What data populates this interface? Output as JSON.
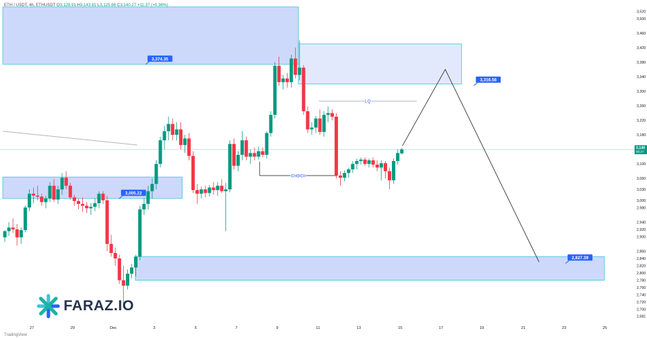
{
  "header": {
    "symbol": "ETH / USDT, 4h, ETHUSDT",
    "open_label": "O",
    "open": "3,128.91",
    "high_label": "H",
    "high": "3,143.81",
    "low_label": "L",
    "low": "3,125.86",
    "close_label": "C",
    "close": "3,140.27",
    "change": "+11.37 (+0.36%)"
  },
  "brand": {
    "name": "FARAZ.IO",
    "icon": "faraz-logo-icon"
  },
  "footer": {
    "tradingview": "TradingView"
  },
  "colors": {
    "up": "#089981",
    "down": "#f23645",
    "zone_fill": "#cdd9fb",
    "zone_border": "#3fc2d8",
    "label_bg": "#2962ff",
    "line": "#333333"
  },
  "chart_data": {
    "type": "candlestick",
    "x_tick_labels": [
      "27",
      "29",
      "Dec",
      "3",
      "5",
      "7",
      "9",
      "11",
      "13",
      "15",
      "17",
      "19",
      "21",
      "23",
      "25"
    ],
    "y_tick_labels": [
      "3,520",
      "3,500",
      "3,460",
      "3,420",
      "3,380",
      "3,340",
      "3,300",
      "3,260",
      "3,220",
      "3,180",
      "3,100",
      "3,060",
      "3,030",
      "3,000",
      "2,980",
      "2,940",
      "2,920",
      "2,900",
      "2,860",
      "2,840",
      "2,820",
      "2,800",
      "2,780",
      "2,760",
      "2,740",
      "2,720",
      "2,700",
      "2,681"
    ],
    "y_tick_values": [
      3520,
      3500,
      3460,
      3420,
      3380,
      3340,
      3300,
      3260,
      3220,
      3180,
      3100,
      3060,
      3030,
      3000,
      2980,
      2940,
      2920,
      2900,
      2860,
      2840,
      2820,
      2800,
      2780,
      2760,
      2740,
      2720,
      2700,
      2681
    ],
    "ylim": [
      2665,
      3532
    ],
    "last_price": {
      "label": "3,140",
      "sublabel": "00:27",
      "value": 3140
    },
    "levels": [
      {
        "label": "3,374.35",
        "value": 3374.35
      },
      {
        "label": "3,316.56",
        "value": 3316.56
      },
      {
        "label": "3,005.22",
        "value": 3005.22
      },
      {
        "label": "2,827.39",
        "value": 2827.39
      }
    ],
    "zones": [
      {
        "name": "upper-demand-zone",
        "from_day": 0,
        "to_day": 14.5,
        "low": 3374,
        "high": 3532
      },
      {
        "name": "supply-zone",
        "from_day": 14.5,
        "to_day": 22.5,
        "low": 3320,
        "high": 3430
      },
      {
        "name": "mid-zone",
        "from_day": 0,
        "to_day": 8.8,
        "low": 3005,
        "high": 3064
      },
      {
        "name": "lower-zone",
        "from_day": 6.5,
        "to_day": 29.5,
        "low": 2780,
        "high": 2845
      }
    ],
    "annotations": [
      {
        "text": "LQ",
        "value": 3273,
        "from_day": 15.5,
        "to_day": 20.3
      },
      {
        "text": "CHOCH",
        "value": 3068,
        "from_day": 12.6,
        "to_day": 16.4
      }
    ],
    "projection": [
      {
        "day": 19.6,
        "value": 3150
      },
      {
        "day": 21.7,
        "value": 3360
      },
      {
        "day": 26.3,
        "value": 2830
      }
    ],
    "trendline": [
      {
        "day": 0,
        "value": 3190
      },
      {
        "day": 6.6,
        "value": 3152
      }
    ],
    "candles": [
      [
        2898,
        2918,
        2885,
        2915
      ],
      [
        2915,
        2940,
        2902,
        2925
      ],
      [
        2925,
        2950,
        2910,
        2920
      ],
      [
        2920,
        2935,
        2875,
        2898
      ],
      [
        2898,
        2925,
        2880,
        2918
      ],
      [
        2918,
        2985,
        2912,
        2980
      ],
      [
        2980,
        3030,
        2970,
        3018
      ],
      [
        3018,
        3035,
        2992,
        3013
      ],
      [
        3013,
        3040,
        3000,
        3010
      ],
      [
        3010,
        3018,
        2985,
        2995
      ],
      [
        2995,
        3012,
        2978,
        3005
      ],
      [
        3005,
        3050,
        2995,
        3040
      ],
      [
        3040,
        3058,
        2995,
        3002
      ],
      [
        3002,
        3040,
        2990,
        3030
      ],
      [
        3030,
        3075,
        3015,
        3062
      ],
      [
        3062,
        3080,
        3030,
        3040
      ],
      [
        3040,
        3048,
        3002,
        3008
      ],
      [
        3008,
        3015,
        2985,
        2998
      ],
      [
        2998,
        3005,
        2975,
        2990
      ],
      [
        2990,
        3008,
        2968,
        2985
      ],
      [
        2985,
        2995,
        2965,
        2978
      ],
      [
        2978,
        2992,
        2960,
        2982
      ],
      [
        2982,
        3005,
        2970,
        2992
      ],
      [
        2992,
        3025,
        2978,
        3018
      ],
      [
        3018,
        3025,
        2990,
        3000
      ],
      [
        3000,
        3012,
        2860,
        2880
      ],
      [
        2880,
        2905,
        2845,
        2855
      ],
      [
        2855,
        2870,
        2820,
        2840
      ],
      [
        2840,
        2850,
        2770,
        2780
      ],
      [
        2780,
        2820,
        2710,
        2765
      ],
      [
        2765,
        2810,
        2755,
        2798
      ],
      [
        2798,
        2825,
        2785,
        2815
      ],
      [
        2815,
        2850,
        2790,
        2845
      ],
      [
        2845,
        2985,
        2835,
        2975
      ],
      [
        2975,
        3005,
        2960,
        2990
      ],
      [
        2990,
        3040,
        2975,
        3025
      ],
      [
        3025,
        3060,
        3005,
        3045
      ],
      [
        3045,
        3110,
        3030,
        3100
      ],
      [
        3100,
        3175,
        3090,
        3165
      ],
      [
        3165,
        3205,
        3140,
        3190
      ],
      [
        3190,
        3230,
        3165,
        3210
      ],
      [
        3210,
        3225,
        3165,
        3180
      ],
      [
        3180,
        3215,
        3165,
        3195
      ],
      [
        3195,
        3215,
        3140,
        3152
      ],
      [
        3152,
        3180,
        3130,
        3170
      ],
      [
        3170,
        3185,
        3110,
        3122
      ],
      [
        3122,
        3135,
        3020,
        3028
      ],
      [
        3028,
        3045,
        2990,
        3018
      ],
      [
        3018,
        3038,
        3005,
        3030
      ],
      [
        3030,
        3040,
        3008,
        3020
      ],
      [
        3020,
        3042,
        3010,
        3035
      ],
      [
        3035,
        3050,
        3015,
        3028
      ],
      [
        3028,
        3050,
        3012,
        3040
      ],
      [
        3040,
        3058,
        3020,
        3025
      ],
      [
        3025,
        3048,
        2915,
        3030
      ],
      [
        3030,
        3165,
        3022,
        3155
      ],
      [
        3155,
        3170,
        3085,
        3095
      ],
      [
        3095,
        3135,
        3080,
        3125
      ],
      [
        3125,
        3190,
        3110,
        3165
      ],
      [
        3165,
        3175,
        3110,
        3120
      ],
      [
        3120,
        3140,
        3100,
        3130
      ],
      [
        3130,
        3145,
        3110,
        3120
      ],
      [
        3120,
        3148,
        3112,
        3135
      ],
      [
        3135,
        3145,
        3118,
        3125
      ],
      [
        3125,
        3190,
        3115,
        3185
      ],
      [
        3185,
        3245,
        3175,
        3235
      ],
      [
        3235,
        3380,
        3225,
        3370
      ],
      [
        3370,
        3395,
        3315,
        3325
      ],
      [
        3325,
        3345,
        3305,
        3335
      ],
      [
        3335,
        3350,
        3310,
        3325
      ],
      [
        3325,
        3400,
        3310,
        3390
      ],
      [
        3390,
        3420,
        3335,
        3345
      ],
      [
        3345,
        3440,
        3330,
        3365
      ],
      [
        3365,
        3372,
        3235,
        3245
      ],
      [
        3245,
        3258,
        3185,
        3195
      ],
      [
        3195,
        3215,
        3180,
        3200
      ],
      [
        3200,
        3232,
        3185,
        3225
      ],
      [
        3225,
        3250,
        3180,
        3188
      ],
      [
        3188,
        3245,
        3175,
        3235
      ],
      [
        3235,
        3258,
        3215,
        3240
      ],
      [
        3240,
        3250,
        3220,
        3230
      ],
      [
        3230,
        3240,
        3060,
        3068
      ],
      [
        3068,
        3080,
        3040,
        3062
      ],
      [
        3062,
        3082,
        3052,
        3075
      ],
      [
        3075,
        3090,
        3062,
        3085
      ],
      [
        3085,
        3108,
        3075,
        3100
      ],
      [
        3100,
        3115,
        3085,
        3108
      ],
      [
        3108,
        3118,
        3098,
        3112
      ],
      [
        3112,
        3118,
        3095,
        3100
      ],
      [
        3100,
        3115,
        3090,
        3110
      ],
      [
        3110,
        3118,
        3090,
        3098
      ],
      [
        3098,
        3110,
        3080,
        3090
      ],
      [
        3090,
        3110,
        3055,
        3102
      ],
      [
        3102,
        3108,
        3060,
        3080
      ],
      [
        3080,
        3090,
        3030,
        3055
      ],
      [
        3055,
        3115,
        3045,
        3108
      ],
      [
        3108,
        3140,
        3098,
        3130
      ],
      [
        3129,
        3144,
        3126,
        3140
      ]
    ]
  }
}
